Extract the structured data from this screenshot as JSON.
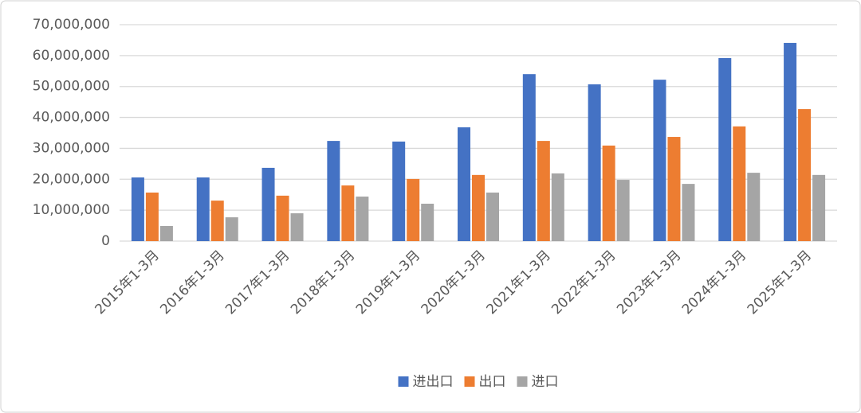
{
  "chart_data": {
    "type": "bar",
    "categories": [
      "2015年1-3月",
      "2016年1-3月",
      "2017年1-3月",
      "2018年1-3月",
      "2019年1-3月",
      "2020年1-3月",
      "2021年1-3月",
      "2022年1-3月",
      "2023年1-3月",
      "2024年1-3月",
      "2025年1-3月"
    ],
    "series": [
      {
        "name": "进出口",
        "color": "#4472c4",
        "values": [
          20600000,
          20600000,
          23700000,
          32400000,
          32200000,
          36800000,
          54000000,
          50700000,
          52200000,
          59200000,
          64100000
        ]
      },
      {
        "name": "出口",
        "color": "#ed7d31",
        "values": [
          15700000,
          13100000,
          14700000,
          18000000,
          20100000,
          21400000,
          32400000,
          30900000,
          33700000,
          37100000,
          42700000
        ]
      },
      {
        "name": "进口",
        "color": "#a5a5a5",
        "values": [
          4900000,
          7700000,
          9000000,
          14400000,
          12100000,
          15700000,
          21900000,
          19800000,
          18500000,
          22100000,
          21400000
        ]
      }
    ],
    "ylim": [
      0,
      70000000
    ],
    "yticks": [
      0,
      {
        "value": 10000000,
        "label": "10,000,000"
      },
      {
        "value": 20000000,
        "label": "20,000,000"
      },
      {
        "value": 30000000,
        "label": "30,000,000"
      },
      {
        "value": 40000000,
        "label": "40,000,000"
      },
      {
        "value": 50000000,
        "label": "50,000,000"
      },
      {
        "value": 60000000,
        "label": "60,000,000"
      },
      {
        "value": 70000000,
        "label": "70,000,000"
      }
    ],
    "grid": true,
    "legend": "bottom"
  }
}
